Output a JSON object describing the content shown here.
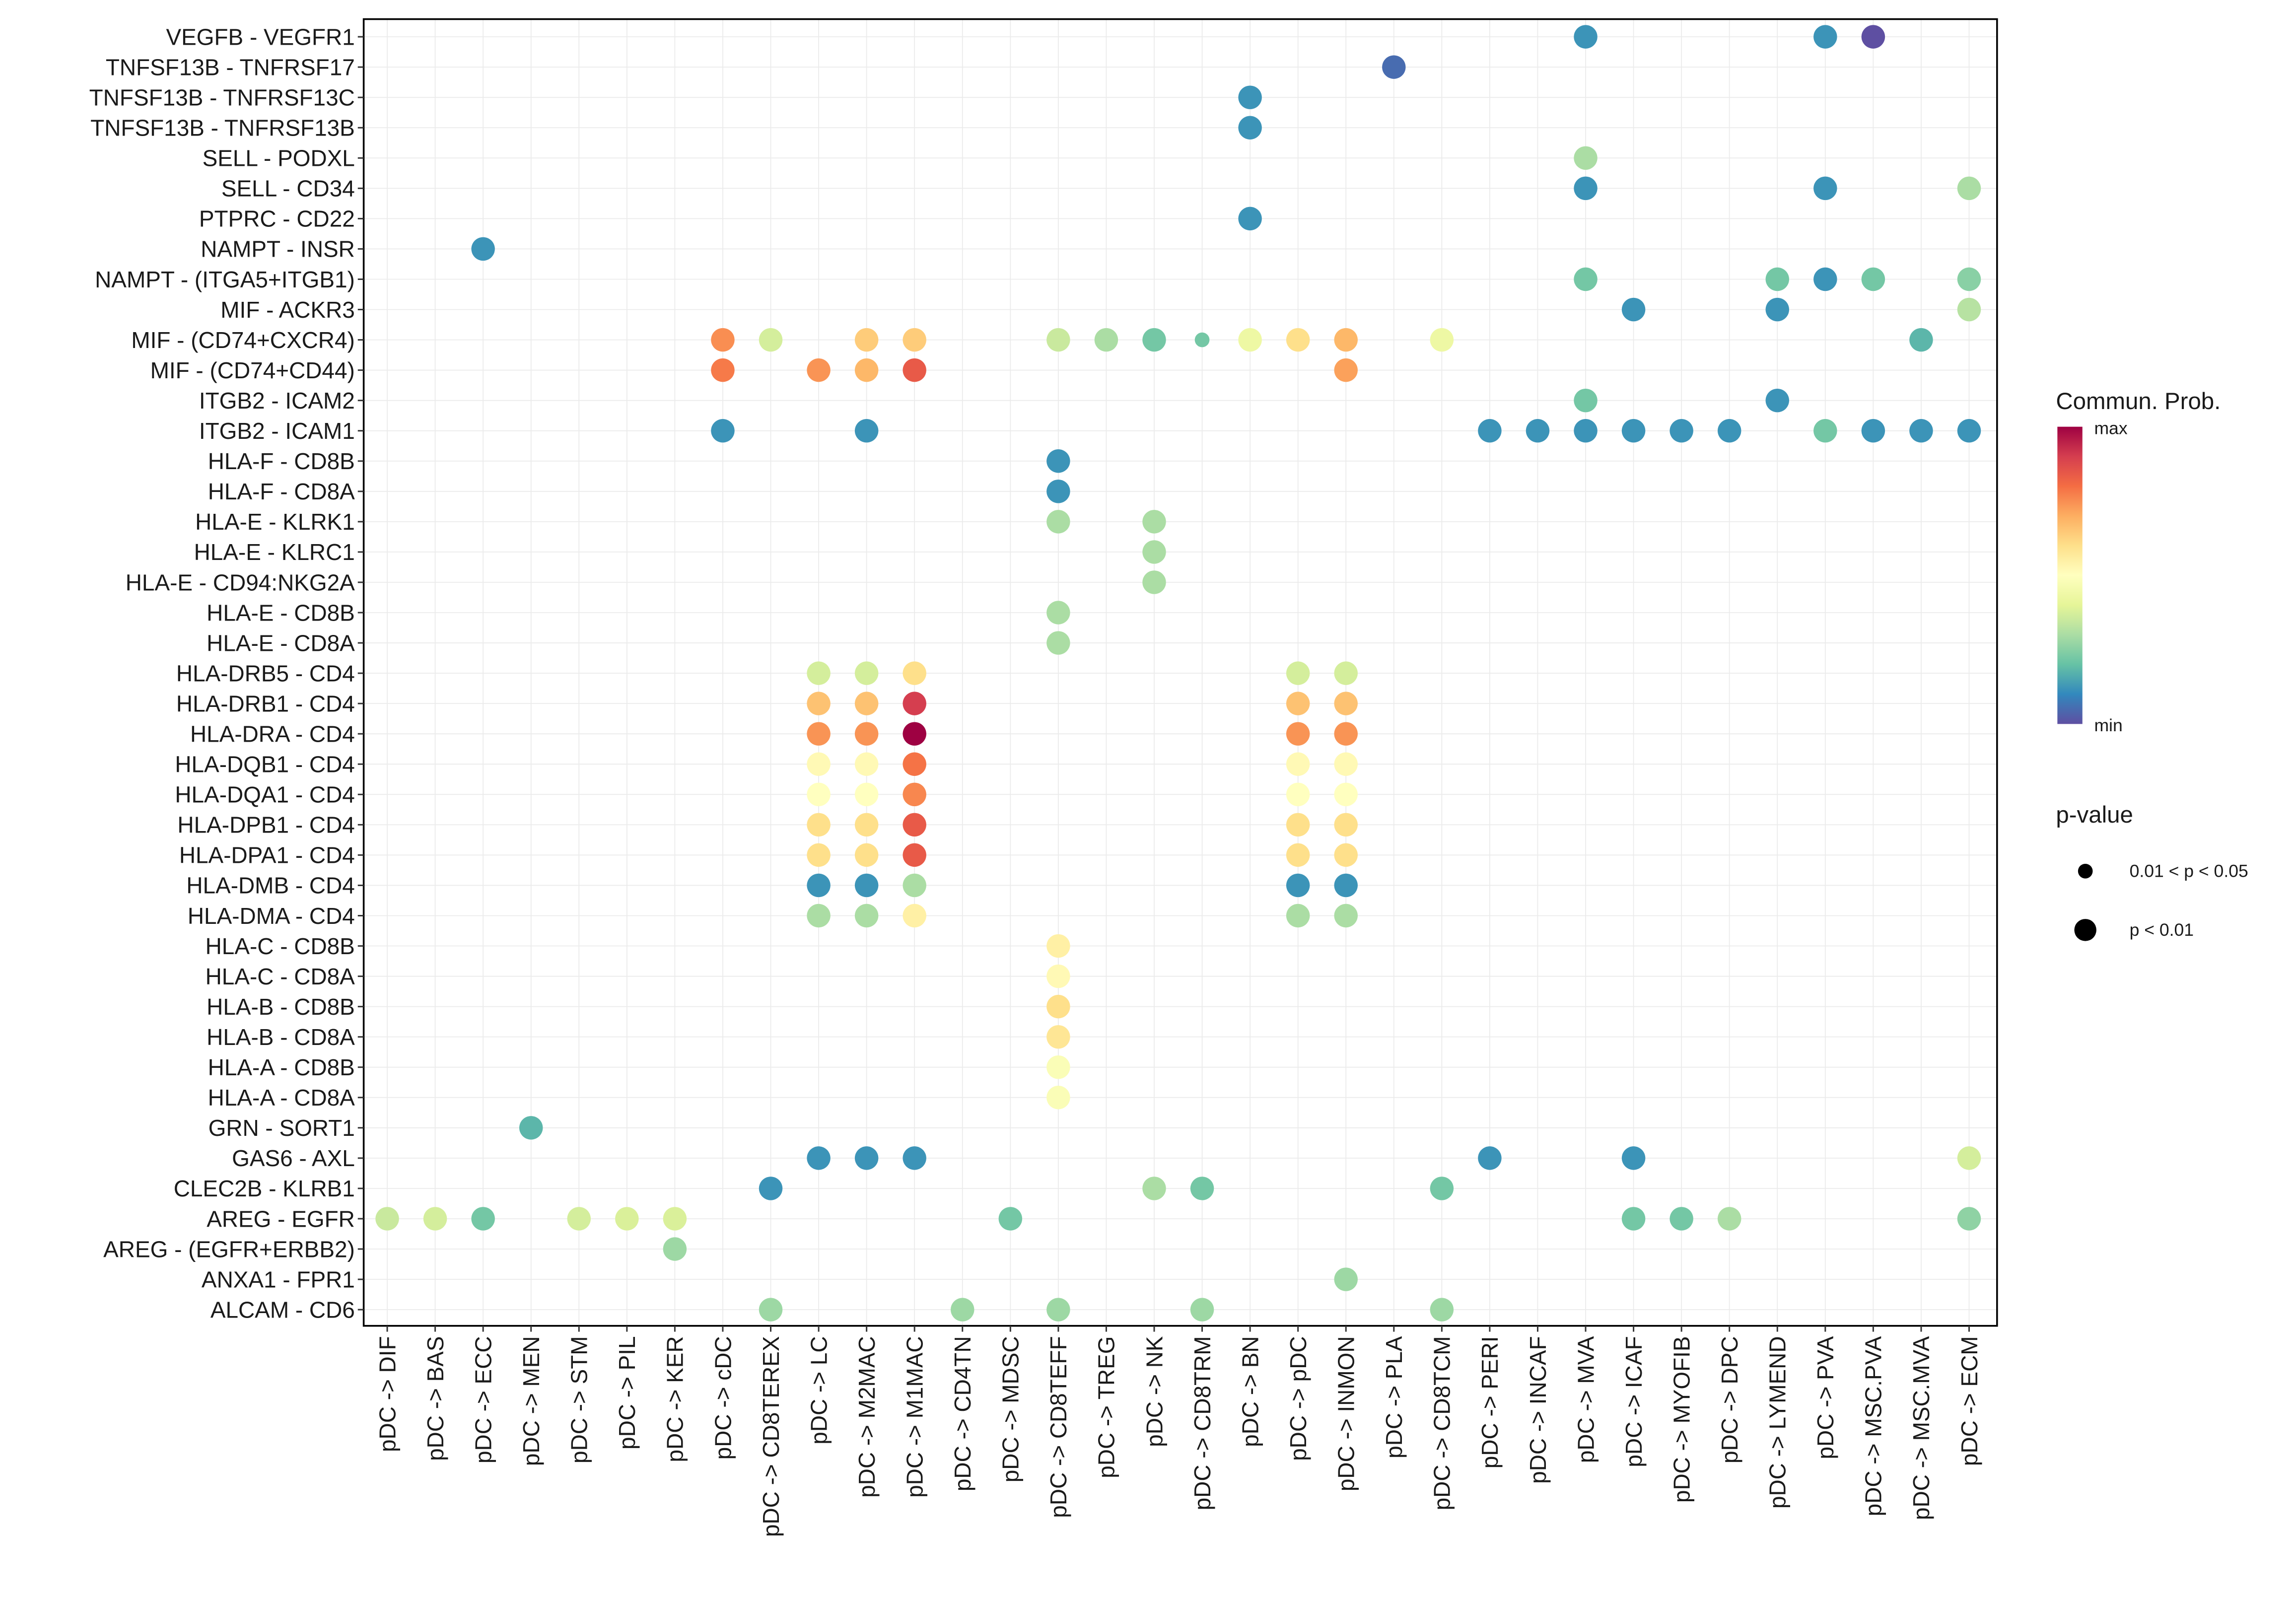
{
  "chart_data": {
    "type": "scatter",
    "subtype": "bubble",
    "xlabel": "",
    "ylabel": "",
    "grid": true,
    "x_categories": [
      "pDC -> DIF",
      "pDC -> BAS",
      "pDC -> ECC",
      "pDC -> MEN",
      "pDC -> STM",
      "pDC -> PIL",
      "pDC -> KER",
      "pDC -> cDC",
      "pDC -> CD8TEREX",
      "pDC -> LC",
      "pDC -> M2MAC",
      "pDC -> M1MAC",
      "pDC -> CD4TN",
      "pDC -> MDSC",
      "pDC -> CD8TEFF",
      "pDC -> TREG",
      "pDC -> NK",
      "pDC -> CD8TRM",
      "pDC -> BN",
      "pDC -> pDC",
      "pDC -> INMON",
      "pDC -> PLA",
      "pDC -> CD8TCM",
      "pDC -> PERI",
      "pDC -> INCAF",
      "pDC -> MVA",
      "pDC -> ICAF",
      "pDC -> MYOFIB",
      "pDC -> DPC",
      "pDC -> LYMEND",
      "pDC -> PVA",
      "pDC -> MSC.PVA",
      "pDC -> MSC.MVA",
      "pDC -> ECM"
    ],
    "y_categories": [
      "VEGFB - VEGFR1",
      "TNFSF13B - TNFRSF17",
      "TNFSF13B - TNFRSF13C",
      "TNFSF13B - TNFRSF13B",
      "SELL - PODXL",
      "SELL - CD34",
      "PTPRC - CD22",
      "NAMPT - INSR",
      "NAMPT - (ITGA5+ITGB1)",
      "MIF - ACKR3",
      "MIF - (CD74+CXCR4)",
      "MIF - (CD74+CD44)",
      "ITGB2 - ICAM2",
      "ITGB2 - ICAM1",
      "HLA-F - CD8B",
      "HLA-F - CD8A",
      "HLA-E - KLRK1",
      "HLA-E - KLRC1",
      "HLA-E - CD94:NKG2A",
      "HLA-E - CD8B",
      "HLA-E - CD8A",
      "HLA-DRB5 - CD4",
      "HLA-DRB1 - CD4",
      "HLA-DRA - CD4",
      "HLA-DQB1 - CD4",
      "HLA-DQA1 - CD4",
      "HLA-DPB1 - CD4",
      "HLA-DPA1 - CD4",
      "HLA-DMB - CD4",
      "HLA-DMA - CD4",
      "HLA-C - CD8B",
      "HLA-C - CD8A",
      "HLA-B - CD8B",
      "HLA-B - CD8A",
      "HLA-A - CD8B",
      "HLA-A - CD8A",
      "GRN - SORT1",
      "GAS6 - AXL",
      "CLEC2B - KLRB1",
      "AREG - EGFR",
      "AREG - (EGFR+ERBB2)",
      "ANXA1 - FPR1",
      "ALCAM - CD6"
    ],
    "point_fields": [
      "y_index",
      "x_index",
      "commun_prob_relative",
      "p_lt_0.01"
    ],
    "points": [
      [
        0,
        25,
        0.12,
        1
      ],
      [
        0,
        30,
        0.12,
        1
      ],
      [
        0,
        31,
        0.0,
        1
      ],
      [
        1,
        21,
        0.05,
        1
      ],
      [
        2,
        18,
        0.12,
        1
      ],
      [
        3,
        18,
        0.12,
        1
      ],
      [
        4,
        25,
        0.3,
        1
      ],
      [
        5,
        25,
        0.12,
        1
      ],
      [
        5,
        30,
        0.12,
        1
      ],
      [
        5,
        33,
        0.3,
        1
      ],
      [
        6,
        18,
        0.12,
        1
      ],
      [
        7,
        2,
        0.12,
        1
      ],
      [
        8,
        25,
        0.22,
        1
      ],
      [
        8,
        29,
        0.22,
        1
      ],
      [
        8,
        30,
        0.12,
        1
      ],
      [
        8,
        31,
        0.22,
        1
      ],
      [
        8,
        33,
        0.25,
        1
      ],
      [
        9,
        26,
        0.12,
        1
      ],
      [
        9,
        29,
        0.12,
        1
      ],
      [
        9,
        33,
        0.32,
        1
      ],
      [
        10,
        7,
        0.75,
        1
      ],
      [
        10,
        8,
        0.37,
        1
      ],
      [
        10,
        10,
        0.64,
        1
      ],
      [
        10,
        11,
        0.64,
        1
      ],
      [
        10,
        14,
        0.35,
        1
      ],
      [
        10,
        15,
        0.3,
        1
      ],
      [
        10,
        16,
        0.22,
        1
      ],
      [
        10,
        17,
        0.22,
        0
      ],
      [
        10,
        18,
        0.43,
        1
      ],
      [
        10,
        19,
        0.6,
        1
      ],
      [
        10,
        20,
        0.68,
        1
      ],
      [
        10,
        22,
        0.43,
        1
      ],
      [
        10,
        32,
        0.18,
        1
      ],
      [
        11,
        7,
        0.78,
        1
      ],
      [
        11,
        9,
        0.74,
        1
      ],
      [
        11,
        10,
        0.68,
        1
      ],
      [
        11,
        11,
        0.84,
        1
      ],
      [
        11,
        20,
        0.72,
        1
      ],
      [
        12,
        25,
        0.22,
        1
      ],
      [
        12,
        29,
        0.12,
        1
      ],
      [
        13,
        7,
        0.12,
        1
      ],
      [
        13,
        10,
        0.12,
        1
      ],
      [
        13,
        23,
        0.12,
        1
      ],
      [
        13,
        24,
        0.12,
        1
      ],
      [
        13,
        25,
        0.12,
        1
      ],
      [
        13,
        26,
        0.12,
        1
      ],
      [
        13,
        27,
        0.12,
        1
      ],
      [
        13,
        28,
        0.12,
        1
      ],
      [
        13,
        30,
        0.22,
        1
      ],
      [
        13,
        31,
        0.12,
        1
      ],
      [
        13,
        32,
        0.12,
        1
      ],
      [
        13,
        33,
        0.12,
        1
      ],
      [
        14,
        14,
        0.12,
        1
      ],
      [
        15,
        14,
        0.12,
        1
      ],
      [
        16,
        14,
        0.3,
        1
      ],
      [
        16,
        16,
        0.3,
        1
      ],
      [
        17,
        16,
        0.3,
        1
      ],
      [
        18,
        16,
        0.3,
        1
      ],
      [
        19,
        14,
        0.3,
        1
      ],
      [
        20,
        14,
        0.3,
        1
      ],
      [
        21,
        9,
        0.37,
        1
      ],
      [
        21,
        10,
        0.37,
        1
      ],
      [
        21,
        11,
        0.6,
        1
      ],
      [
        21,
        19,
        0.37,
        1
      ],
      [
        21,
        20,
        0.37,
        1
      ],
      [
        22,
        9,
        0.66,
        1
      ],
      [
        22,
        10,
        0.66,
        1
      ],
      [
        22,
        11,
        0.9,
        1
      ],
      [
        22,
        19,
        0.66,
        1
      ],
      [
        22,
        20,
        0.66,
        1
      ],
      [
        23,
        9,
        0.74,
        1
      ],
      [
        23,
        10,
        0.74,
        1
      ],
      [
        23,
        11,
        1.0,
        1
      ],
      [
        23,
        19,
        0.74,
        1
      ],
      [
        23,
        20,
        0.74,
        1
      ],
      [
        24,
        9,
        0.52,
        1
      ],
      [
        24,
        10,
        0.52,
        1
      ],
      [
        24,
        11,
        0.79,
        1
      ],
      [
        24,
        19,
        0.52,
        1
      ],
      [
        24,
        20,
        0.52,
        1
      ],
      [
        25,
        9,
        0.5,
        1
      ],
      [
        25,
        10,
        0.5,
        1
      ],
      [
        25,
        11,
        0.76,
        1
      ],
      [
        25,
        19,
        0.5,
        1
      ],
      [
        25,
        20,
        0.5,
        1
      ],
      [
        26,
        9,
        0.6,
        1
      ],
      [
        26,
        10,
        0.6,
        1
      ],
      [
        26,
        11,
        0.84,
        1
      ],
      [
        26,
        19,
        0.6,
        1
      ],
      [
        26,
        20,
        0.6,
        1
      ],
      [
        27,
        9,
        0.6,
        1
      ],
      [
        27,
        10,
        0.6,
        1
      ],
      [
        27,
        11,
        0.84,
        1
      ],
      [
        27,
        19,
        0.6,
        1
      ],
      [
        27,
        20,
        0.6,
        1
      ],
      [
        28,
        9,
        0.12,
        1
      ],
      [
        28,
        10,
        0.12,
        1
      ],
      [
        28,
        11,
        0.3,
        1
      ],
      [
        28,
        19,
        0.12,
        1
      ],
      [
        28,
        20,
        0.12,
        1
      ],
      [
        29,
        9,
        0.3,
        1
      ],
      [
        29,
        10,
        0.3,
        1
      ],
      [
        29,
        11,
        0.55,
        1
      ],
      [
        29,
        19,
        0.3,
        1
      ],
      [
        29,
        20,
        0.3,
        1
      ],
      [
        30,
        14,
        0.55,
        1
      ],
      [
        31,
        14,
        0.52,
        1
      ],
      [
        32,
        14,
        0.6,
        1
      ],
      [
        33,
        14,
        0.58,
        1
      ],
      [
        34,
        14,
        0.48,
        1
      ],
      [
        35,
        14,
        0.48,
        1
      ],
      [
        36,
        3,
        0.18,
        1
      ],
      [
        37,
        9,
        0.12,
        1
      ],
      [
        37,
        10,
        0.12,
        1
      ],
      [
        37,
        11,
        0.12,
        1
      ],
      [
        37,
        23,
        0.12,
        1
      ],
      [
        37,
        26,
        0.12,
        1
      ],
      [
        37,
        33,
        0.37,
        1
      ],
      [
        38,
        8,
        0.12,
        1
      ],
      [
        38,
        16,
        0.3,
        1
      ],
      [
        38,
        17,
        0.22,
        1
      ],
      [
        38,
        22,
        0.22,
        1
      ],
      [
        39,
        0,
        0.35,
        1
      ],
      [
        39,
        1,
        0.37,
        1
      ],
      [
        39,
        2,
        0.22,
        1
      ],
      [
        39,
        4,
        0.37,
        1
      ],
      [
        39,
        5,
        0.38,
        1
      ],
      [
        39,
        6,
        0.38,
        1
      ],
      [
        39,
        13,
        0.22,
        1
      ],
      [
        39,
        26,
        0.22,
        1
      ],
      [
        39,
        27,
        0.22,
        1
      ],
      [
        39,
        28,
        0.3,
        1
      ],
      [
        39,
        33,
        0.26,
        1
      ],
      [
        40,
        6,
        0.28,
        1
      ],
      [
        41,
        20,
        0.28,
        1
      ],
      [
        42,
        8,
        0.28,
        1
      ],
      [
        42,
        12,
        0.28,
        1
      ],
      [
        42,
        14,
        0.28,
        1
      ],
      [
        42,
        17,
        0.28,
        1
      ],
      [
        42,
        22,
        0.28,
        1
      ]
    ],
    "legend": {
      "color_title": "Commun. Prob.",
      "color_max": "max",
      "color_min": "min",
      "size_title": "p-value",
      "size_items": [
        "0.01 < p < 0.05",
        "p < 0.01"
      ],
      "placement": "right"
    },
    "palette": [
      "#5E4FA2",
      "#3288BD",
      "#66C2A5",
      "#ABDDA4",
      "#E6F598",
      "#FFFFBF",
      "#FEE08B",
      "#FDAE61",
      "#F46D43",
      "#D53E4F",
      "#9E0142"
    ]
  }
}
